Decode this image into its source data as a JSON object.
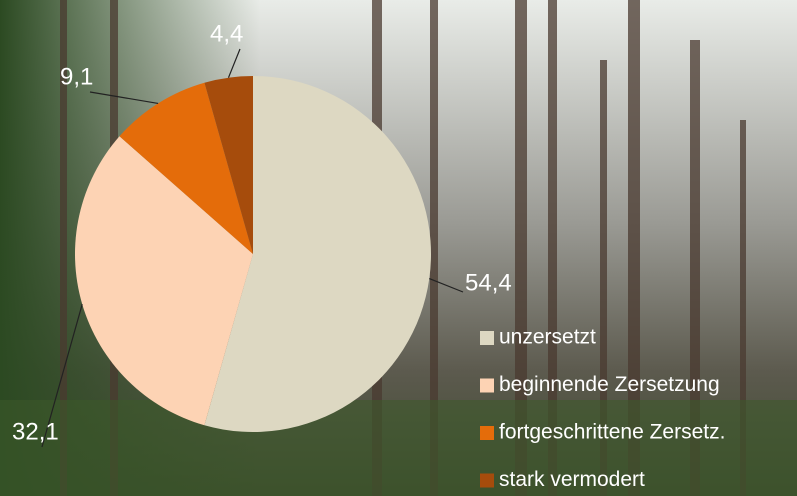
{
  "chart_data": {
    "type": "pie",
    "categories": [
      "unzersetzt",
      "beginnende Zersetzung",
      "fortgeschrittene Zersetz.",
      "stark vermodert"
    ],
    "values": [
      54.4,
      32.1,
      9.1,
      4.4
    ],
    "value_labels": [
      "54,4",
      "32,1",
      "9,1",
      "4,4"
    ],
    "colors": [
      "#ddd8c2",
      "#fdd3b4",
      "#e46c0a",
      "#a64c0c"
    ],
    "legend": "right"
  }
}
